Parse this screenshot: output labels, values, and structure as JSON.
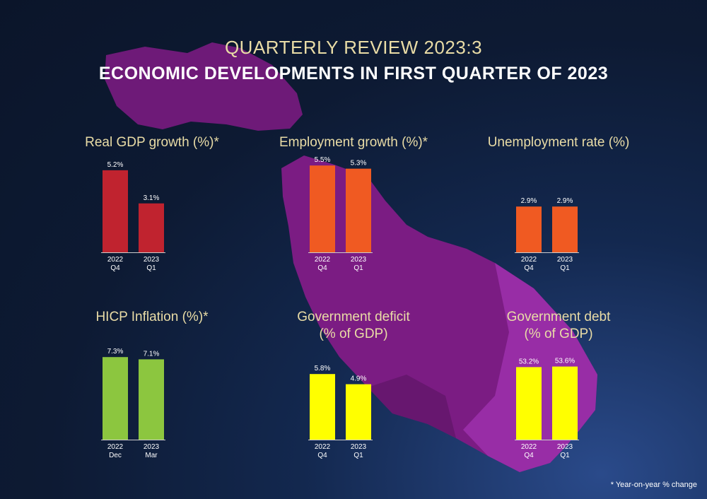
{
  "header": {
    "subtitle": "QUARTERLY REVIEW 2023:3",
    "title": "ECONOMIC DEVELOPMENTS IN FIRST QUARTER OF 2023"
  },
  "footnote": "* Year-on-year % change",
  "colors": {
    "title_text": "#e9dca6",
    "map_fill": "#7b1c83",
    "map_highlight": "#b23cc0",
    "bar_label": "#ffffff",
    "baseline": "#cccccc"
  },
  "chart_data": [
    {
      "id": "real-gdp",
      "type": "bar",
      "title": "Real GDP growth (%)*",
      "categories": [
        [
          "2022",
          "Q4"
        ],
        [
          "2023",
          "Q1"
        ]
      ],
      "values": [
        5.2,
        3.1
      ],
      "labels": [
        "5.2%",
        "3.1%"
      ],
      "color": "#c0232f",
      "ylim": [
        0,
        6
      ]
    },
    {
      "id": "employment",
      "type": "bar",
      "title": "Employment growth (%)*",
      "categories": [
        [
          "2022",
          "Q4"
        ],
        [
          "2023",
          "Q1"
        ]
      ],
      "values": [
        5.5,
        5.3
      ],
      "labels": [
        "5.5%",
        "5.3%"
      ],
      "color": "#f05a22",
      "ylim": [
        0,
        6
      ]
    },
    {
      "id": "unemployment",
      "type": "bar",
      "title": "Unemployment rate (%)",
      "categories": [
        [
          "2022",
          "Q4"
        ],
        [
          "2023",
          "Q1"
        ]
      ],
      "values": [
        2.9,
        2.9
      ],
      "labels": [
        "2.9%",
        "2.9%"
      ],
      "color": "#f05a22",
      "ylim": [
        0,
        6
      ]
    },
    {
      "id": "hicp",
      "type": "bar",
      "title": "HICP Inflation (%)*",
      "categories": [
        [
          "2022",
          "Dec"
        ],
        [
          "2023",
          "Mar"
        ]
      ],
      "values": [
        7.3,
        7.1
      ],
      "labels": [
        "7.3%",
        "7.1%"
      ],
      "color": "#8cc63f",
      "ylim": [
        0,
        8
      ]
    },
    {
      "id": "gov-deficit",
      "type": "bar",
      "title": "Government deficit\n(% of GDP)",
      "categories": [
        [
          "2022",
          "Q4"
        ],
        [
          "2023",
          "Q1"
        ]
      ],
      "values": [
        5.8,
        4.9
      ],
      "labels": [
        "5.8%",
        "4.9%"
      ],
      "color": "#ffff00",
      "ylim": [
        0,
        8
      ]
    },
    {
      "id": "gov-debt",
      "type": "bar",
      "title": "Government debt\n(% of GDP)",
      "categories": [
        [
          "2022",
          "Q4"
        ],
        [
          "2023",
          "Q1"
        ]
      ],
      "values": [
        53.2,
        53.6
      ],
      "labels": [
        "53.2%",
        "53.6%"
      ],
      "color": "#ffff00",
      "ylim": [
        0,
        70.5
      ]
    }
  ]
}
